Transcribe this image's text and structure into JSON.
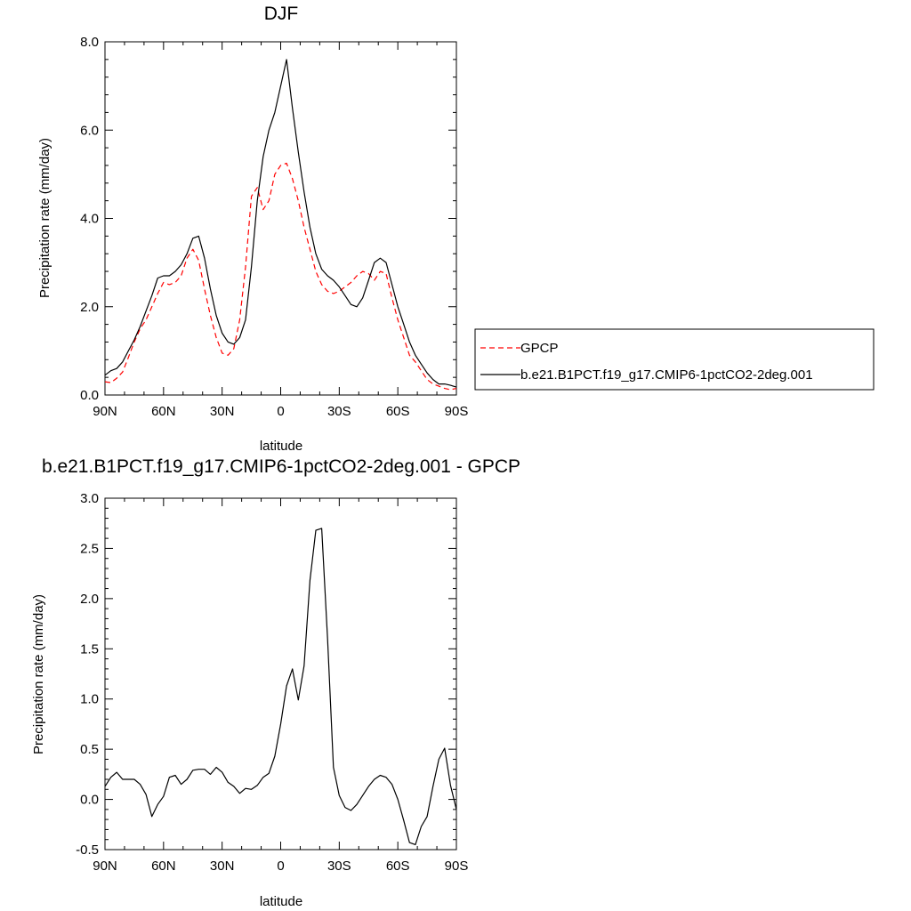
{
  "chart_data": [
    {
      "type": "line",
      "title": "DJF",
      "xlabel": "latitude",
      "ylabel": "Precipitation rate (mm/day)",
      "xlim": [
        -90,
        90
      ],
      "ylim": [
        0,
        8
      ],
      "x_ticks": [
        -90,
        -60,
        -30,
        0,
        30,
        60,
        90
      ],
      "x_tick_labels": [
        "90N",
        "60N",
        "30N",
        "0",
        "30S",
        "60S",
        "90S"
      ],
      "y_ticks": [
        0,
        2,
        4,
        6,
        8
      ],
      "y_tick_labels": [
        "0.0",
        "2.0",
        "4.0",
        "6.0",
        "8.0"
      ],
      "legend": {
        "placement": "right",
        "entries": [
          "GPCP",
          "b.e21.B1PCT.f19_g17.CMIP6-1pctCO2-2deg.001"
        ]
      },
      "series": [
        {
          "name": "GPCP",
          "color": "#ff0000",
          "style": "dashed",
          "x": [
            -90,
            -87,
            -84,
            -81,
            -78,
            -75,
            -72,
            -69,
            -66,
            -63,
            -60,
            -57,
            -54,
            -51,
            -48,
            -45,
            -42,
            -39,
            -36,
            -33,
            -30,
            -27,
            -24,
            -21,
            -18,
            -15,
            -12,
            -9,
            -6,
            -3,
            0,
            3,
            6,
            9,
            12,
            15,
            18,
            21,
            24,
            27,
            30,
            33,
            36,
            39,
            42,
            45,
            48,
            51,
            54,
            57,
            60,
            63,
            66,
            69,
            72,
            75,
            78,
            81,
            84,
            87,
            90
          ],
          "values": [
            0.3,
            0.28,
            0.38,
            0.52,
            0.85,
            1.2,
            1.5,
            1.7,
            2.0,
            2.3,
            2.55,
            2.5,
            2.55,
            2.7,
            3.1,
            3.3,
            3.05,
            2.4,
            1.8,
            1.3,
            0.95,
            0.9,
            1.05,
            1.7,
            2.9,
            4.5,
            4.7,
            4.2,
            4.4,
            5.0,
            5.2,
            5.25,
            4.9,
            4.4,
            3.8,
            3.3,
            2.8,
            2.5,
            2.35,
            2.3,
            2.35,
            2.45,
            2.55,
            2.7,
            2.8,
            2.75,
            2.6,
            2.8,
            2.75,
            2.2,
            1.7,
            1.3,
            0.9,
            0.75,
            0.55,
            0.35,
            0.25,
            0.2,
            0.15,
            0.12,
            0.15
          ]
        },
        {
          "name": "b.e21.B1PCT.f19_g17.CMIP6-1pctCO2-2deg.001",
          "color": "#000000",
          "style": "solid",
          "x": [
            -90,
            -87,
            -84,
            -81,
            -78,
            -75,
            -72,
            -69,
            -66,
            -63,
            -60,
            -57,
            -54,
            -51,
            -48,
            -45,
            -42,
            -39,
            -36,
            -33,
            -30,
            -27,
            -24,
            -21,
            -18,
            -15,
            -12,
            -9,
            -6,
            -3,
            0,
            3,
            6,
            9,
            12,
            15,
            18,
            21,
            24,
            27,
            30,
            33,
            36,
            39,
            42,
            45,
            48,
            51,
            54,
            57,
            60,
            63,
            66,
            69,
            72,
            75,
            78,
            81,
            84,
            87,
            90
          ],
          "values": [
            0.45,
            0.55,
            0.6,
            0.75,
            1.0,
            1.25,
            1.55,
            1.9,
            2.25,
            2.65,
            2.7,
            2.7,
            2.8,
            2.95,
            3.2,
            3.55,
            3.6,
            3.1,
            2.4,
            1.8,
            1.4,
            1.2,
            1.15,
            1.3,
            1.7,
            2.9,
            4.4,
            5.4,
            6.0,
            6.4,
            7.0,
            7.6,
            6.5,
            5.5,
            4.6,
            3.8,
            3.2,
            2.85,
            2.7,
            2.6,
            2.45,
            2.25,
            2.05,
            2.0,
            2.2,
            2.6,
            3.0,
            3.1,
            3.0,
            2.5,
            2.0,
            1.6,
            1.2,
            0.9,
            0.7,
            0.5,
            0.35,
            0.25,
            0.25,
            0.22,
            0.18
          ]
        }
      ]
    },
    {
      "type": "line",
      "title": "b.e21.B1PCT.f19_g17.CMIP6-1pctCO2-2deg.001 - GPCP",
      "xlabel": "latitude",
      "ylabel": "Precipitation rate (mm/day)",
      "xlim": [
        -90,
        90
      ],
      "ylim": [
        -0.5,
        3.0
      ],
      "x_ticks": [
        -90,
        -60,
        -30,
        0,
        30,
        60,
        90
      ],
      "x_tick_labels": [
        "90N",
        "60N",
        "30N",
        "0",
        "30S",
        "60S",
        "90S"
      ],
      "y_ticks": [
        -0.5,
        0,
        0.5,
        1.0,
        1.5,
        2.0,
        2.5,
        3.0
      ],
      "y_tick_labels": [
        "-0.5",
        "0.0",
        "0.5",
        "1.0",
        "1.5",
        "2.0",
        "2.5",
        "3.0"
      ],
      "series": [
        {
          "color": "#000000",
          "style": "solid",
          "x": [
            -90,
            -87,
            -84,
            -81,
            -78,
            -75,
            -72,
            -69,
            -66,
            -63,
            -60,
            -57,
            -54,
            -51,
            -48,
            -45,
            -42,
            -39,
            -36,
            -33,
            -30,
            -27,
            -24,
            -21,
            -18,
            -15,
            -12,
            -9,
            -6,
            -3,
            0,
            3,
            6,
            9,
            12,
            15,
            18,
            21,
            24,
            27,
            30,
            33,
            36,
            39,
            42,
            45,
            48,
            51,
            54,
            57,
            60,
            63,
            66,
            69,
            72,
            75,
            78,
            81,
            84,
            87,
            90
          ],
          "values": [
            0.13,
            0.22,
            0.27,
            0.2,
            0.2,
            0.2,
            0.15,
            0.05,
            -0.17,
            -0.05,
            0.03,
            0.22,
            0.24,
            0.15,
            0.2,
            0.29,
            0.3,
            0.3,
            0.25,
            0.32,
            0.27,
            0.17,
            0.13,
            0.06,
            0.11,
            0.1,
            0.14,
            0.22,
            0.26,
            0.43,
            0.75,
            1.13,
            1.3,
            0.99,
            1.33,
            2.18,
            2.68,
            2.7,
            1.6,
            0.32,
            0.04,
            -0.08,
            -0.11,
            -0.05,
            0.04,
            0.13,
            0.2,
            0.24,
            0.22,
            0.15,
            0.0,
            -0.21,
            -0.43,
            -0.45,
            -0.27,
            -0.17,
            0.13,
            0.4,
            0.51,
            0.14,
            -0.1
          ]
        }
      ]
    }
  ]
}
